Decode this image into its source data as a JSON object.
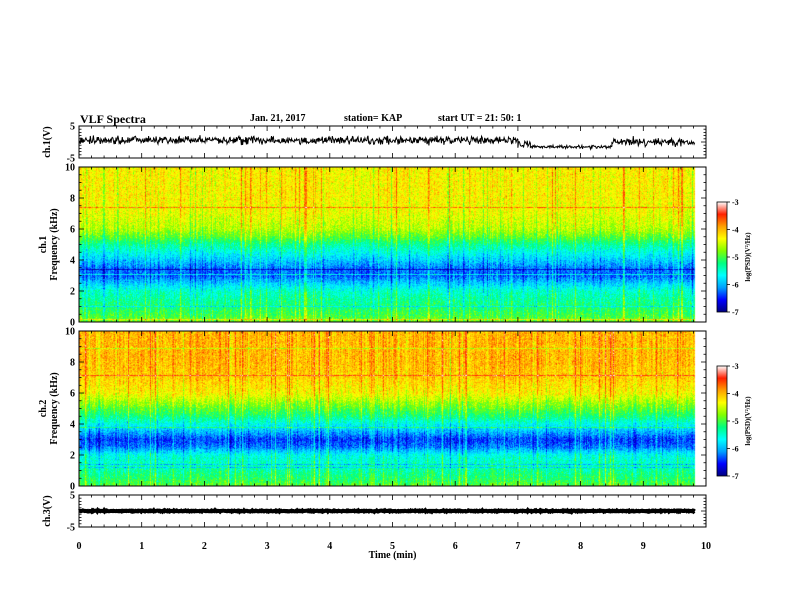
{
  "header": {
    "title": "VLF Spectra",
    "date": "Jan. 21, 2017",
    "station": "station= KAP",
    "start": "start  UT  =   21: 50: 1"
  },
  "chart_data": [
    {
      "id": "ch1-waveform",
      "type": "line",
      "ylabel": "ch.1(V)",
      "ylim": [
        -5,
        5
      ],
      "ytick_labels": [
        "5",
        "-5"
      ],
      "xlim": [
        0,
        10
      ],
      "x_extent": [
        0,
        9.82
      ],
      "segments": [
        {
          "x_range": [
            0,
            7.0
          ],
          "level": 0.5,
          "noise_amplitude": 2.2
        },
        {
          "x_range": [
            7.0,
            7.2
          ],
          "level": -0.5,
          "noise_amplitude": 2.5
        },
        {
          "x_range": [
            7.2,
            8.5
          ],
          "level": -1.5,
          "noise_amplitude": 0.9
        },
        {
          "x_range": [
            8.5,
            9.82
          ],
          "level": 0.0,
          "noise_amplitude": 2.0
        }
      ]
    },
    {
      "id": "ch1-spectrogram",
      "type": "heatmap",
      "ylabel": "ch.1\nFrequency  (kHz)",
      "ylim": [
        0,
        10
      ],
      "ytick_labels": [
        "0",
        "2",
        "4",
        "6",
        "8",
        "10"
      ],
      "xlim": [
        0,
        10
      ],
      "x_extent": [
        0,
        9.82
      ],
      "level_profile": {
        "freq_khz": [
          0,
          0.4,
          1.0,
          2.0,
          2.5,
          3.0,
          3.5,
          4.0,
          4.5,
          5.0,
          5.5,
          6.0,
          7.0,
          8.0,
          9.0,
          10.0
        ],
        "log_psd": [
          -4.8,
          -5.0,
          -5.2,
          -5.5,
          -5.9,
          -6.3,
          -6.2,
          -5.9,
          -5.6,
          -5.3,
          -4.9,
          -4.6,
          -4.4,
          -4.3,
          -4.3,
          -4.3
        ]
      }
    },
    {
      "id": "ch2-spectrogram",
      "type": "heatmap",
      "ylabel": "ch.2\nFrequency  (kHz)",
      "ylim": [
        0,
        10
      ],
      "ytick_labels": [
        "0",
        "2",
        "4",
        "6",
        "8",
        "10"
      ],
      "xlim": [
        0,
        10
      ],
      "x_extent": [
        0,
        9.82
      ],
      "level_profile": {
        "freq_khz": [
          0,
          0.4,
          1.0,
          2.0,
          2.5,
          3.0,
          3.5,
          4.0,
          4.5,
          5.0,
          5.5,
          6.0,
          7.0,
          8.0,
          9.0,
          10.0
        ],
        "log_psd": [
          -4.9,
          -5.1,
          -5.3,
          -5.6,
          -6.2,
          -6.4,
          -6.0,
          -5.6,
          -5.2,
          -4.9,
          -4.6,
          -4.3,
          -4.1,
          -4.0,
          -4.0,
          -4.0
        ]
      }
    },
    {
      "id": "ch3-waveform",
      "type": "line",
      "ylabel": "ch.3(V)",
      "ylim": [
        -5,
        5
      ],
      "ytick_labels": [
        "5",
        "-5"
      ],
      "xlim": [
        0,
        10
      ],
      "x_extent": [
        0,
        9.82
      ],
      "segments": [
        {
          "x_range": [
            0,
            9.82
          ],
          "level": 0.0,
          "noise_amplitude": 0.3
        }
      ]
    }
  ],
  "x_axis": {
    "label": "Time  (min)",
    "tick_labels": [
      "0",
      "1",
      "2",
      "3",
      "4",
      "5",
      "6",
      "7",
      "8",
      "9",
      "10"
    ]
  },
  "colorbar": {
    "range": [
      -7,
      -3
    ],
    "tick_labels": [
      "-3",
      "-4",
      "-5",
      "-6",
      "-7"
    ],
    "label": "log(PSD)(V²/Hz)",
    "colors": [
      "#000080",
      "#0000ff",
      "#00a0ff",
      "#00ffff",
      "#00ff80",
      "#80ff00",
      "#ffff00",
      "#ffa000",
      "#ff2000",
      "#ffffff"
    ]
  }
}
